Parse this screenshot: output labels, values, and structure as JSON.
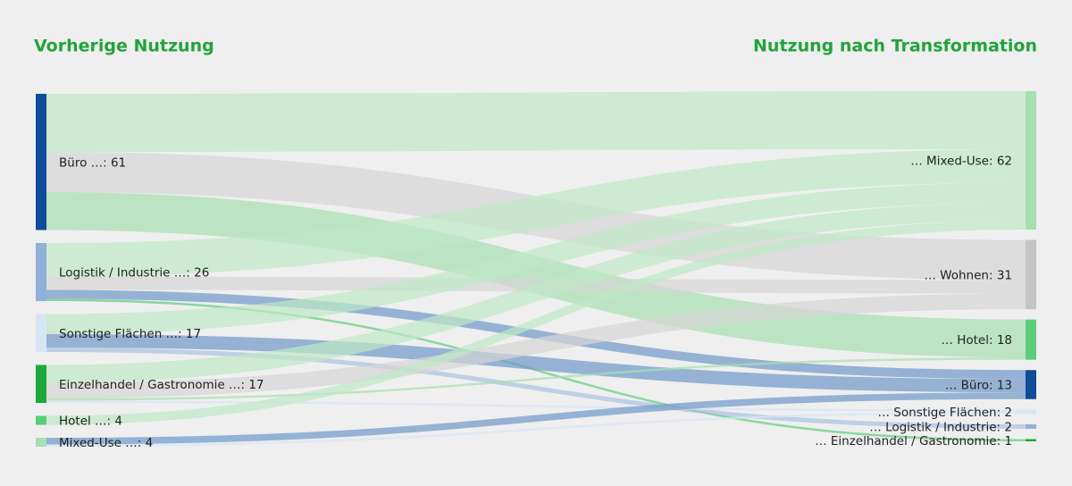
{
  "chart_data": {
    "type": "sankey",
    "title_left": "Vorherige Nutzung",
    "title_right": "Nutzung nach Transformation",
    "left_nodes": [
      {
        "label": "Büro …: 61",
        "value": 61,
        "color": "#0f4c9a"
      },
      {
        "label": "Logistik / Industrie …: 26",
        "value": 26,
        "color": "#8fb0d8"
      },
      {
        "label": "Sonstige Flächen …: 17",
        "value": 17,
        "color": "#d8e6f3"
      },
      {
        "label": "Einzelhandel / Gastronomie …: 17",
        "value": 17,
        "color": "#1ea83c"
      },
      {
        "label": "Hotel …: 4",
        "value": 4,
        "color": "#5ccd7a"
      },
      {
        "label": "Mixed-Use …: 4",
        "value": 4,
        "color": "#a6dfb0"
      }
    ],
    "right_nodes": [
      {
        "label": "… Mixed-Use: 62",
        "value": 62,
        "color": "#a6dfb0",
        "link_color": "#bfe8c6"
      },
      {
        "label": "… Wohnen: 31",
        "value": 31,
        "color": "#c4c4c4",
        "link_color": "#d6d6d6"
      },
      {
        "label": "… Hotel: 18",
        "value": 18,
        "color": "#5ccd7a",
        "link_color": "#a6dfb0"
      },
      {
        "label": "… Büro: 13",
        "value": 13,
        "color": "#0f4c9a",
        "link_color": "#6f98c9"
      },
      {
        "label": "… Sonstige Flächen: 2",
        "value": 2,
        "color": "#d8e6f3",
        "link_color": "#d8e6f3"
      },
      {
        "label": "… Logistik / Industrie: 2",
        "value": 2,
        "color": "#8fb0d8",
        "link_color": "#a9c2e2"
      },
      {
        "label": "… Einzelhandel / Gastronomie: 1",
        "value": 1,
        "color": "#1ea83c",
        "link_color": "#5ccd7a"
      }
    ],
    "links": [
      {
        "source": 0,
        "target": 0,
        "value": 26
      },
      {
        "source": 0,
        "target": 1,
        "value": 18
      },
      {
        "source": 0,
        "target": 2,
        "value": 17
      },
      {
        "source": 1,
        "target": 0,
        "value": 15
      },
      {
        "source": 1,
        "target": 1,
        "value": 6
      },
      {
        "source": 1,
        "target": 3,
        "value": 4
      },
      {
        "source": 1,
        "target": 6,
        "value": 1
      },
      {
        "source": 2,
        "target": 0,
        "value": 9
      },
      {
        "source": 2,
        "target": 3,
        "value": 6
      },
      {
        "source": 2,
        "target": 5,
        "value": 2
      },
      {
        "source": 3,
        "target": 0,
        "value": 8
      },
      {
        "source": 3,
        "target": 1,
        "value": 7
      },
      {
        "source": 3,
        "target": 2,
        "value": 1
      },
      {
        "source": 3,
        "target": 4,
        "value": 1
      },
      {
        "source": 4,
        "target": 0,
        "value": 4
      },
      {
        "source": 5,
        "target": 3,
        "value": 3
      },
      {
        "source": 5,
        "target": 4,
        "value": 1
      }
    ]
  }
}
